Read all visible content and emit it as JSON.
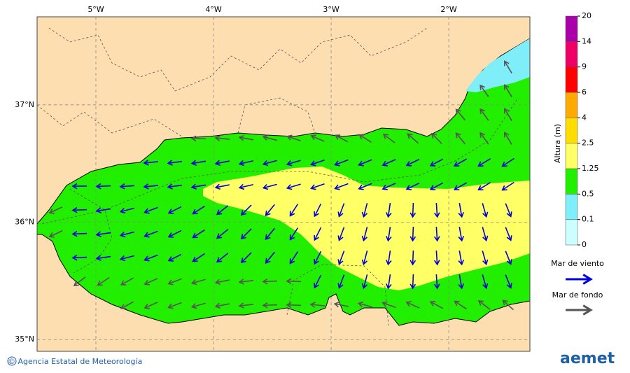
{
  "map": {
    "xlim": [
      -5.5,
      -1.31
    ],
    "ylim": [
      34.9,
      37.75
    ],
    "xticks": [
      {
        "value": -5,
        "label": "5°W"
      },
      {
        "value": -4,
        "label": "4°W"
      },
      {
        "value": -3,
        "label": "3°W"
      },
      {
        "value": -2,
        "label": "2°W"
      }
    ],
    "yticks": [
      {
        "value": 37,
        "label": "37°N"
      },
      {
        "value": 36,
        "label": "36°N"
      },
      {
        "value": 35,
        "label": "35°N"
      }
    ]
  },
  "colorbar": {
    "title": "Altura (m)",
    "levels": [
      0,
      0.1,
      0.5,
      1.25,
      2.5,
      4,
      6,
      9,
      14,
      20
    ],
    "colors": [
      "#ccffff",
      "#80eef8",
      "#22ee00",
      "#ffff66",
      "#ffdd00",
      "#ffaa00",
      "#ff0000",
      "#ee0066",
      "#aa00aa"
    ]
  },
  "legend": [
    {
      "label": "Mar de viento",
      "color": "#0000dd"
    },
    {
      "label": "Mar de fondo",
      "color": "#555555"
    }
  ],
  "footer": {
    "credit": "© Agencia Estatal de Meteorología",
    "logo": "aemet"
  }
}
